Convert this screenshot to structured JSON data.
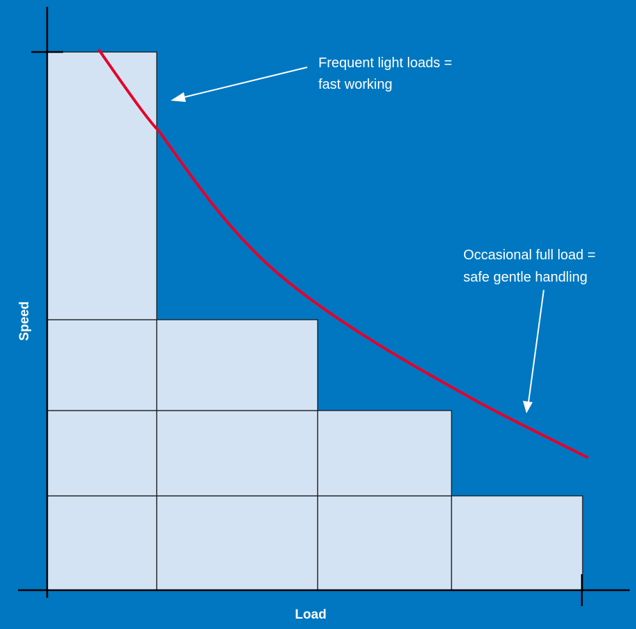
{
  "colors": {
    "background": "#0077c0",
    "cell_fill": "#d4e3f3",
    "cell_stroke": "#1a1a1a",
    "curve": "#e4002b",
    "axis": "#000000",
    "annotation_text": "#ffffff",
    "arrow": "#ffffff"
  },
  "axes": {
    "x_label": "Load",
    "y_label": "Speed"
  },
  "annotations": {
    "light_loads": {
      "line1": "Frequent light loads =",
      "line2": "fast working"
    },
    "full_load": {
      "line1": "Occasional full load =",
      "line2": "safe gentle handling"
    }
  }
}
